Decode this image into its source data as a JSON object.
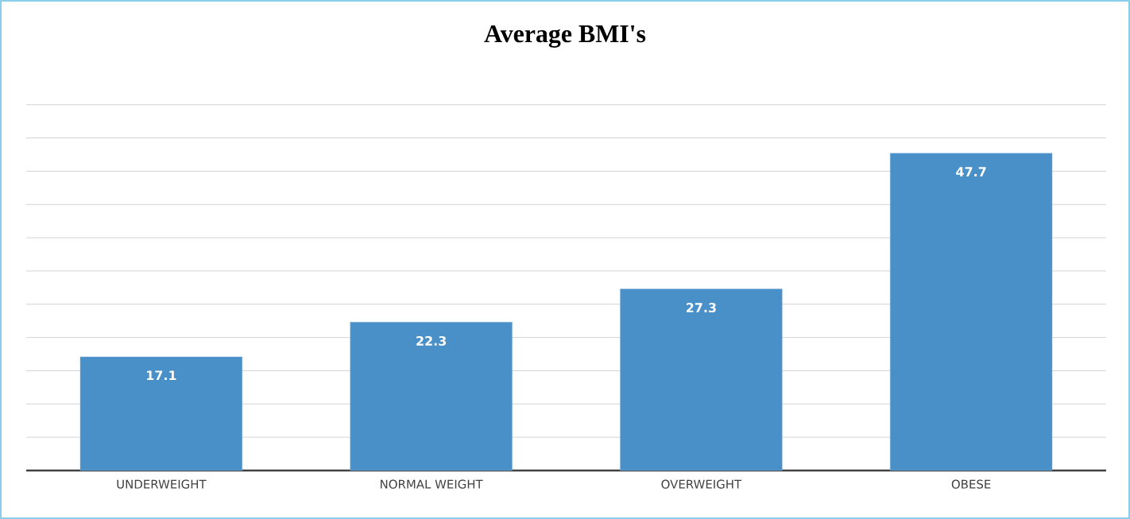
{
  "chart_data": {
    "type": "bar",
    "title": "Average BMI's",
    "categories": [
      "UNDERWEIGHT",
      "NORMAL WEIGHT",
      "OVERWEIGHT",
      "OBESE"
    ],
    "values": [
      17.1,
      22.3,
      27.3,
      47.7
    ],
    "color": "#4a90c8",
    "grid": "y",
    "tick_labels": "x",
    "data_labels": true
  }
}
